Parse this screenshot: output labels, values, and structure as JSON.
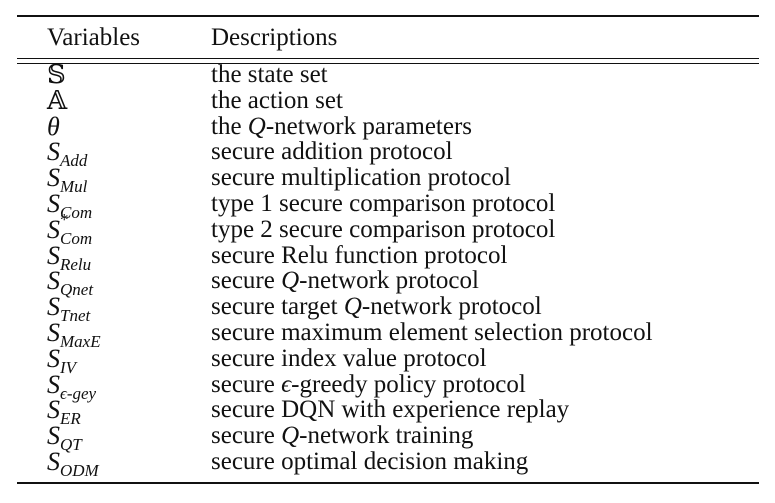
{
  "table": {
    "headers": {
      "variables": "Variables",
      "descriptions": "Descriptions"
    },
    "rows": [
      {
        "symbol": "𝕊",
        "sub": "",
        "sup": "",
        "desc_pre": "the state set",
        "desc_q": "",
        "desc_post": ""
      },
      {
        "symbol": "𝔸",
        "sub": "",
        "sup": "",
        "desc_pre": "the action set",
        "desc_q": "",
        "desc_post": ""
      },
      {
        "symbol": "θ",
        "sub": "",
        "sup": "",
        "desc_pre": "the ",
        "desc_q": "Q",
        "desc_post": "-network parameters"
      },
      {
        "symbol": "S",
        "sub": "Add",
        "sup": "",
        "desc_pre": "secure addition protocol",
        "desc_q": "",
        "desc_post": ""
      },
      {
        "symbol": "S",
        "sub": "Mul",
        "sup": "",
        "desc_pre": "secure multiplication protocol",
        "desc_q": "",
        "desc_post": ""
      },
      {
        "symbol": "S",
        "sub": "Com",
        "sup": "",
        "desc_pre": "type 1 secure comparison protocol",
        "desc_q": "",
        "desc_post": ""
      },
      {
        "symbol": "S",
        "sub": "Com",
        "sup": "*",
        "desc_pre": "type 2 secure comparison protocol",
        "desc_q": "",
        "desc_post": ""
      },
      {
        "symbol": "S",
        "sub": "Relu",
        "sup": "",
        "desc_pre": "secure Relu function protocol",
        "desc_q": "",
        "desc_post": ""
      },
      {
        "symbol": "S",
        "sub": "Qnet",
        "sup": "",
        "desc_pre": "secure ",
        "desc_q": "Q",
        "desc_post": "-network protocol"
      },
      {
        "symbol": "S",
        "sub": "Tnet",
        "sup": "",
        "desc_pre": "secure target ",
        "desc_q": "Q",
        "desc_post": "-network protocol"
      },
      {
        "symbol": "S",
        "sub": "MaxE",
        "sup": "",
        "desc_pre": "secure maximum element selection protocol",
        "desc_q": "",
        "desc_post": ""
      },
      {
        "symbol": "S",
        "sub": "IV",
        "sup": "",
        "desc_pre": "secure index value protocol",
        "desc_q": "",
        "desc_post": ""
      },
      {
        "symbol": "S",
        "sub": "ϵ-gey",
        "sup": "",
        "desc_pre": "secure ",
        "desc_q": "ϵ",
        "desc_post": "-greedy policy protocol"
      },
      {
        "symbol": "S",
        "sub": "ER",
        "sup": "",
        "desc_pre": "secure DQN with experience replay",
        "desc_q": "",
        "desc_post": ""
      },
      {
        "symbol": "S",
        "sub": "QT",
        "sup": "",
        "desc_pre": "secure ",
        "desc_q": "Q",
        "desc_post": "-network training"
      },
      {
        "symbol": "S",
        "sub": "ODM",
        "sup": "",
        "desc_pre": "secure optimal decision making",
        "desc_q": "",
        "desc_post": ""
      }
    ]
  }
}
